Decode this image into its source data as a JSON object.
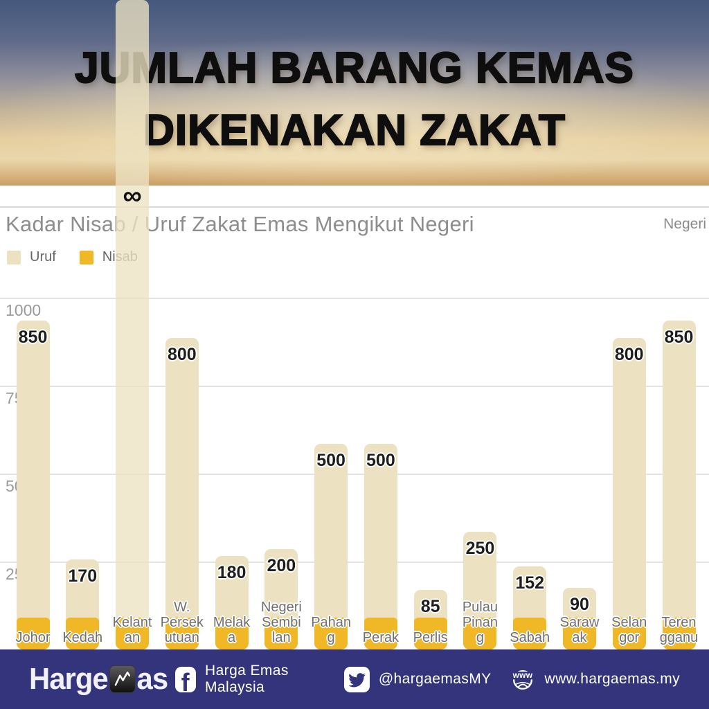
{
  "header": {
    "title_line1": "JUMLAH BARANG KEMAS",
    "title_line2": "DIKENAKAN ZAKAT",
    "background_colors": [
      "#44587C",
      "#E8D5AA",
      "#C79F66"
    ]
  },
  "chart": {
    "title": "Kadar Nisab / Uruf Zakat Emas Mengikut Negeri",
    "x_axis_title": "Negeri",
    "infinity_label": "∞",
    "legend": [
      {
        "label": "Uruf",
        "color": "#ECE2C2"
      },
      {
        "label": "Nisab",
        "color": "#F0B827"
      }
    ]
  },
  "chart_data": {
    "type": "bar",
    "stacked": true,
    "title": "Kadar Nisab / Uruf Zakat Emas Mengikut Negeri",
    "xlabel": "Negeri",
    "ylabel": "",
    "ylim": [
      0,
      1000
    ],
    "yticks": [
      250,
      500,
      750,
      1000
    ],
    "grid": true,
    "legend_position": "top-left",
    "categories": [
      "Johor",
      "Kedah",
      "Kelantan",
      "W. Persekutuan",
      "Melaka",
      "Negeri Sembilan",
      "Pahang",
      "Perak",
      "Perlis",
      "Pulau Pinang",
      "Sabah",
      "Sarawak",
      "Selangor",
      "Terengganu"
    ],
    "category_display_lines": [
      [
        "Johor"
      ],
      [
        "Kedah"
      ],
      [
        "Kelant",
        "an"
      ],
      [
        "W.",
        "Persek",
        "utuan"
      ],
      [
        "Melak",
        "a"
      ],
      [
        "Negeri",
        "Sembi",
        "lan"
      ],
      [
        "Pahan",
        "g"
      ],
      [
        "Perak"
      ],
      [
        "Perlis"
      ],
      [
        "Pulau",
        "Pinan",
        "g"
      ],
      [
        "Sabah"
      ],
      [
        "Saraw",
        "ak"
      ],
      [
        "Selan",
        "gor"
      ],
      [
        "Teren",
        "gganu"
      ]
    ],
    "series": [
      {
        "name": "Nisab",
        "color": "#F0B827",
        "values": [
          85,
          85,
          85,
          85,
          85,
          85,
          85,
          85,
          85,
          85,
          85,
          85,
          85,
          85
        ]
      },
      {
        "name": "Uruf",
        "color": "#ECE2C2",
        "values": [
          850,
          170,
          null,
          800,
          180,
          200,
          500,
          500,
          85,
          250,
          152,
          90,
          800,
          850
        ],
        "labels": [
          "850",
          "170",
          "∞",
          "800",
          "180",
          "200",
          "500",
          "500",
          "85",
          "250",
          "152",
          "90",
          "800",
          "850"
        ]
      }
    ]
  },
  "footer": {
    "background_color": "#34347C",
    "logo": {
      "part1": "Harge",
      "part2": "as",
      "icon": "chart-trend-icon"
    },
    "facebook_icon_glyph": "f",
    "facebook_label": "Harga Emas Malaysia",
    "twitter_label": "@hargaemasMY",
    "website_icon_text": "www",
    "website_label": "www.hargaemas.my"
  }
}
